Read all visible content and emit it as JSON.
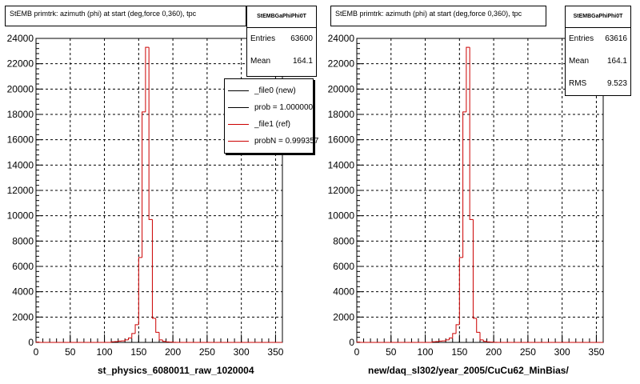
{
  "colors": {
    "file0": "#000000",
    "file1": "#cc0000",
    "grid": "#000000",
    "axis": "#000000"
  },
  "chart_data": [
    {
      "type": "bar",
      "title": "StEMB primtrk: azimuth (phi) at start (deg,force 0,360), tpc",
      "xlabel": "st_physics_6080011_raw_1020004",
      "ylabel": "",
      "xlim": [
        0,
        360
      ],
      "ylim": [
        0,
        24000
      ],
      "x_ticks": [
        "0",
        "50",
        "100",
        "150",
        "200",
        "250",
        "300",
        "350"
      ],
      "y_ticks": [
        "0",
        "2000",
        "4000",
        "6000",
        "8000",
        "10000",
        "12000",
        "14000",
        "16000",
        "18000",
        "20000",
        "22000",
        "24000"
      ],
      "grid": true,
      "stats": {
        "header": "StEMBGaPhiPhi0T",
        "rows": [
          {
            "label": "Entries",
            "value": "63600"
          },
          {
            "label": "Mean",
            "value": "164.1"
          }
        ]
      },
      "legend": {
        "placement": "top-right",
        "entries": [
          {
            "label": "_file0 (new)",
            "color": "#000000"
          },
          {
            "label": "prob = 1.000000",
            "color": "#000000"
          },
          {
            "label": "_file1 (ref)",
            "color": "#cc0000"
          },
          {
            "label": "probN = 0.999357",
            "color": "#cc0000"
          }
        ]
      },
      "bin_width": 5,
      "x": [
        0,
        5,
        10,
        15,
        20,
        25,
        30,
        35,
        40,
        45,
        50,
        55,
        60,
        65,
        70,
        75,
        80,
        85,
        90,
        95,
        100,
        105,
        110,
        115,
        120,
        125,
        130,
        135,
        140,
        145,
        150,
        155,
        160,
        165,
        170,
        175,
        180,
        185,
        190,
        195,
        200,
        205,
        210,
        215,
        220,
        225,
        230,
        235,
        240,
        245,
        250,
        255,
        260,
        265,
        270,
        275,
        280,
        285,
        290,
        295,
        300,
        305,
        310,
        315,
        320,
        325,
        330,
        335,
        340,
        345,
        350,
        355
      ],
      "series": [
        {
          "name": "_file0 (new)",
          "values": [
            0,
            0,
            0,
            0,
            0,
            0,
            0,
            0,
            0,
            0,
            0,
            0,
            0,
            0,
            0,
            0,
            0,
            0,
            0,
            0,
            0,
            0,
            0,
            0,
            0,
            0,
            0,
            0,
            0,
            0,
            0,
            0,
            0,
            0,
            0,
            0,
            0,
            0,
            0,
            0,
            0,
            0,
            0,
            0,
            0,
            0,
            0,
            0,
            0,
            0,
            0,
            0,
            0,
            0,
            0,
            0,
            0,
            0,
            0,
            0,
            0,
            0,
            0,
            0,
            0,
            0,
            0,
            0,
            0,
            0,
            0,
            0
          ]
        },
        {
          "name": "_file1 (ref)",
          "values": [
            20,
            0,
            0,
            0,
            0,
            0,
            0,
            0,
            0,
            0,
            0,
            0,
            0,
            0,
            0,
            0,
            0,
            0,
            0,
            0,
            0,
            0,
            50,
            60,
            100,
            120,
            200,
            350,
            700,
            1400,
            6700,
            18200,
            23300,
            9700,
            1900,
            800,
            200,
            80,
            40,
            20,
            10,
            0,
            0,
            0,
            0,
            0,
            0,
            0,
            0,
            0,
            0,
            0,
            0,
            0,
            0,
            0,
            0,
            0,
            0,
            0,
            0,
            0,
            0,
            0,
            0,
            0,
            0,
            0,
            0,
            0,
            0,
            0
          ]
        }
      ]
    },
    {
      "type": "bar",
      "title": "StEMB primtrk: azimuth (phi) at start (deg,force 0,360), tpc",
      "xlabel": "new/daq_sl302/year_2005/CuCu62_MinBias/",
      "ylabel": "",
      "xlim": [
        0,
        360
      ],
      "ylim": [
        0,
        24000
      ],
      "x_ticks": [
        "0",
        "50",
        "100",
        "150",
        "200",
        "250",
        "300",
        "350"
      ],
      "y_ticks": [
        "0",
        "2000",
        "4000",
        "6000",
        "8000",
        "10000",
        "12000",
        "14000",
        "16000",
        "18000",
        "20000",
        "22000",
        "24000"
      ],
      "grid": true,
      "stats": {
        "header": "StEMBGaPhiPhi0T",
        "rows": [
          {
            "label": "Entries",
            "value": "63616"
          },
          {
            "label": "Mean",
            "value": "164.1"
          },
          {
            "label": "RMS",
            "value": "9.523"
          }
        ]
      },
      "bin_width": 5,
      "x": [
        0,
        5,
        10,
        15,
        20,
        25,
        30,
        35,
        40,
        45,
        50,
        55,
        60,
        65,
        70,
        75,
        80,
        85,
        90,
        95,
        100,
        105,
        110,
        115,
        120,
        125,
        130,
        135,
        140,
        145,
        150,
        155,
        160,
        165,
        170,
        175,
        180,
        185,
        190,
        195,
        200,
        205,
        210,
        215,
        220,
        225,
        230,
        235,
        240,
        245,
        250,
        255,
        260,
        265,
        270,
        275,
        280,
        285,
        290,
        295,
        300,
        305,
        310,
        315,
        320,
        325,
        330,
        335,
        340,
        345,
        350,
        355
      ],
      "series": [
        {
          "name": "_file1 (ref)",
          "values": [
            20,
            0,
            0,
            0,
            0,
            0,
            0,
            0,
            0,
            0,
            0,
            0,
            0,
            0,
            0,
            0,
            0,
            0,
            0,
            0,
            0,
            0,
            50,
            60,
            100,
            120,
            200,
            350,
            700,
            1400,
            6700,
            18200,
            23300,
            9700,
            1900,
            800,
            200,
            80,
            40,
            20,
            10,
            0,
            0,
            0,
            0,
            0,
            0,
            0,
            0,
            0,
            0,
            0,
            0,
            0,
            0,
            0,
            0,
            0,
            0,
            0,
            0,
            0,
            0,
            0,
            0,
            0,
            0,
            0,
            0,
            0,
            0,
            0
          ]
        }
      ]
    }
  ]
}
